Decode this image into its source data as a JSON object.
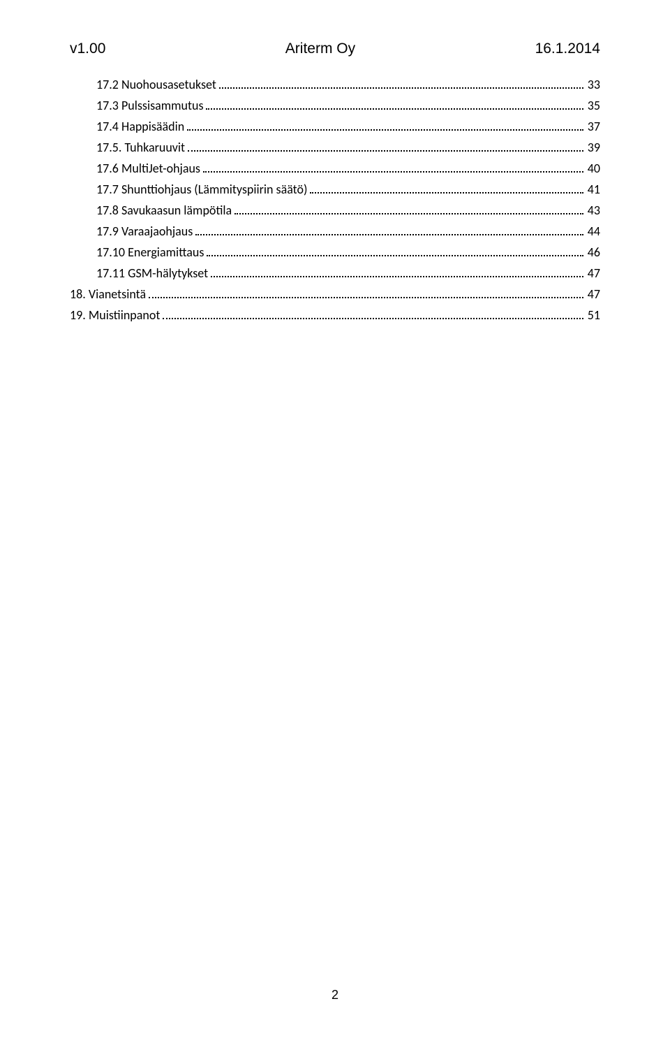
{
  "header": {
    "left": "v1.00",
    "center": "Ariterm Oy",
    "right": "16.1.2014"
  },
  "toc": [
    {
      "indent": true,
      "title": "17.2 Nuohousasetukset",
      "page": "33"
    },
    {
      "indent": true,
      "title": "17.3 Pulssisammutus",
      "page": "35"
    },
    {
      "indent": true,
      "title": "17.4 Happisäädin",
      "page": "37"
    },
    {
      "indent": true,
      "title": "17.5. Tuhkaruuvit",
      "page": "39"
    },
    {
      "indent": true,
      "title": "17.6 MultiJet-ohjaus",
      "page": "40"
    },
    {
      "indent": true,
      "title": "17.7 Shunttiohjaus (Lämmityspiirin säätö)",
      "page": "41"
    },
    {
      "indent": true,
      "title": "17.8 Savukaasun lämpötila",
      "page": "43"
    },
    {
      "indent": true,
      "title": "17.9 Varaajaohjaus",
      "page": "44"
    },
    {
      "indent": true,
      "title": "17.10 Energiamittaus",
      "page": "46"
    },
    {
      "indent": true,
      "title": "17.11 GSM-hälytykset",
      "page": "47"
    },
    {
      "indent": false,
      "title": "18. Vianetsintä",
      "page": "47"
    },
    {
      "indent": false,
      "title": "19. Muistiinpanot",
      "page": "51"
    }
  ],
  "page_number": "2",
  "colors": {
    "text": "#000000",
    "background": "#ffffff"
  },
  "fonts": {
    "header_size": 21,
    "toc_size": 18,
    "page_number_size": 18
  }
}
